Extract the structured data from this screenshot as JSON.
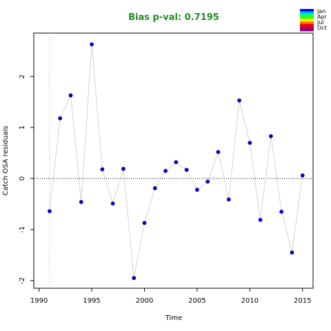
{
  "chart_data": {
    "type": "line",
    "title": "Bias p-val: 0.7195",
    "title_color": "#228B22",
    "xlabel": "Time",
    "ylabel": "Catch OSA residuals",
    "xlim": [
      1989.5,
      2016
    ],
    "ylim": [
      -2.15,
      2.85
    ],
    "x_ticks": [
      1990,
      1995,
      2000,
      2005,
      2010,
      2015
    ],
    "y_ticks": [
      -2,
      -1,
      0,
      1,
      2
    ],
    "reference_hline": 0,
    "reference_vline": 1991,
    "point_color": "#0000CD",
    "line_color": "#d3d3d3",
    "grid": false,
    "legend_position": "top-right",
    "legend": {
      "labels": [
        "Jan",
        "Apr",
        "Jul",
        "Oct"
      ],
      "colors": [
        "#0000FF",
        "#00BFFF",
        "#00FF80",
        "#40FF00",
        "#FFFF00",
        "#FF8000",
        "#FF0000",
        "#C00040",
        "#800080"
      ]
    },
    "series": [
      {
        "x": [
          1991,
          1992,
          1993,
          1994,
          1995,
          1996,
          1997,
          1998,
          1999,
          2000,
          2001,
          2002,
          2003,
          2004,
          2005,
          2006,
          2007,
          2008,
          2009,
          2010,
          2011,
          2012,
          2013,
          2014,
          2015
        ],
        "values": [
          -0.64,
          1.18,
          1.63,
          -0.46,
          2.63,
          0.18,
          -0.49,
          0.19,
          -1.95,
          -0.87,
          -0.19,
          0.15,
          0.32,
          0.17,
          -0.22,
          -0.06,
          0.52,
          -0.41,
          1.53,
          0.7,
          -0.81,
          0.83,
          -0.65,
          -1.45,
          0.06
        ]
      }
    ]
  }
}
